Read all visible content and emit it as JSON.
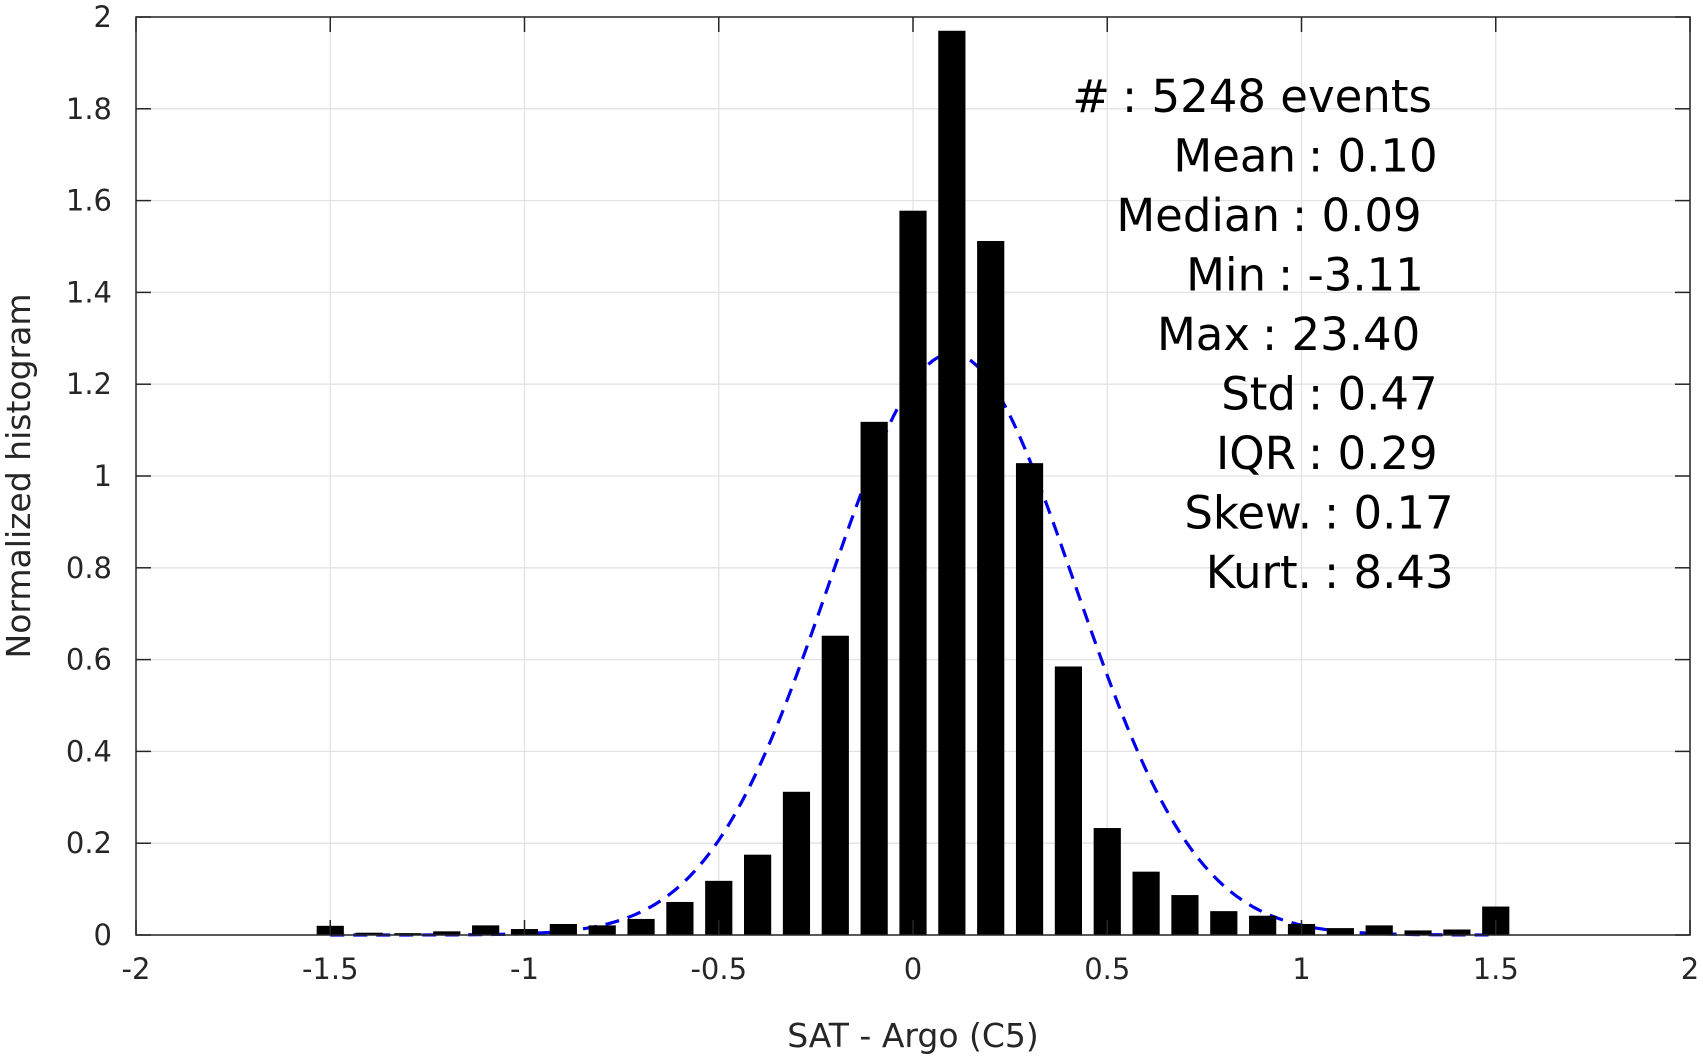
{
  "chart_data": {
    "type": "bar",
    "title": "",
    "xlabel": "SAT - Argo (C5)",
    "ylabel": "Normalized histogram",
    "xlim": [
      -2,
      2
    ],
    "ylim": [
      0,
      2
    ],
    "grid": true,
    "box": true,
    "x_ticks": [
      -2,
      -1.5,
      -1,
      -0.5,
      0,
      0.5,
      1,
      1.5,
      2
    ],
    "x_tick_labels": [
      "-2",
      "-1.5",
      "-1",
      "-0.5",
      "0",
      "0.5",
      "1",
      "1.5",
      "2"
    ],
    "y_ticks": [
      0,
      0.2,
      0.4,
      0.6,
      0.8,
      1,
      1.2,
      1.4,
      1.6,
      1.8,
      2
    ],
    "y_tick_labels": [
      "0",
      "0.2",
      "0.4",
      "0.6",
      "0.8",
      "1",
      "1.2",
      "1.4",
      "1.6",
      "1.8",
      "2"
    ],
    "bar_color": "#000000",
    "bar_width": 0.07,
    "bars": {
      "x": [
        -1.5,
        -1.4,
        -1.3,
        -1.2,
        -1.1,
        -1.0,
        -0.9,
        -0.8,
        -0.7,
        -0.6,
        -0.5,
        -0.4,
        -0.3,
        -0.2,
        -0.1,
        0.0,
        0.1,
        0.2,
        0.3,
        0.4,
        0.5,
        0.6,
        0.7,
        0.8,
        0.9,
        1.0,
        1.1,
        1.2,
        1.3,
        1.4,
        1.5
      ],
      "values": [
        0.02,
        0.005,
        0.004,
        0.008,
        0.021,
        0.013,
        0.024,
        0.021,
        0.035,
        0.072,
        0.118,
        0.175,
        0.312,
        0.652,
        1.118,
        1.578,
        1.97,
        1.512,
        1.028,
        0.585,
        0.233,
        0.138,
        0.087,
        0.052,
        0.042,
        0.024,
        0.015,
        0.021,
        0.01,
        0.012,
        0.062
      ]
    },
    "fit_curve": {
      "type": "normal",
      "mean": 0.1,
      "std": 0.315,
      "x_range": [
        -1.5,
        1.5
      ],
      "color": "#0000ee",
      "style": "dashed"
    },
    "annotations": [
      {
        "label": "#",
        "value": ": 5248 events"
      },
      {
        "label": "Mean",
        "value": ": 0.10"
      },
      {
        "label": "Median",
        "value": ": 0.09"
      },
      {
        "label": "Min",
        "value": ": -3.11"
      },
      {
        "label": "Max",
        "value": ": 23.40"
      },
      {
        "label": "Std",
        "value": ": 0.47"
      },
      {
        "label": "IQR",
        "value": ": 0.29"
      },
      {
        "label": "Skew.",
        "value": ": 0.17"
      },
      {
        "label": "Kurt.",
        "value": ": 8.43"
      }
    ]
  }
}
